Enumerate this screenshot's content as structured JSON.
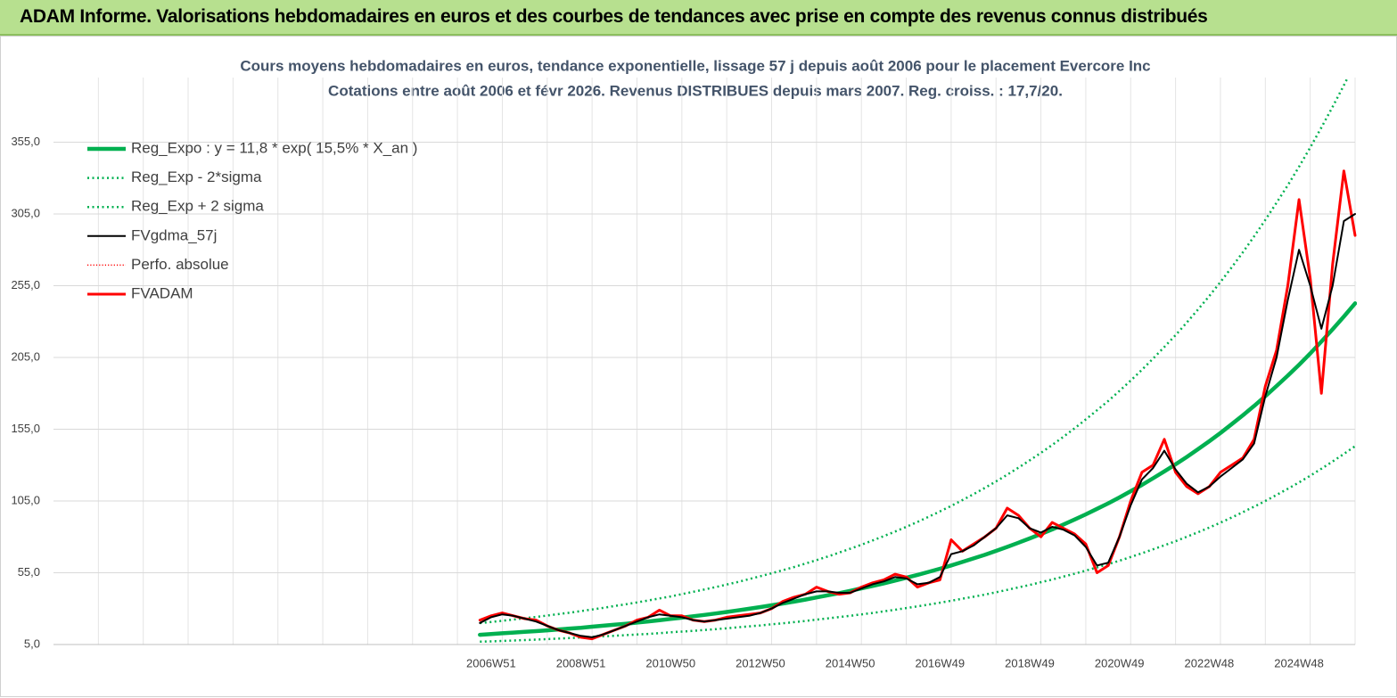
{
  "header": {
    "title": "ADAM Informe. Valorisations hebdomadaires en euros et des courbes de tendances avec prise en compte des revenus connus distribués"
  },
  "chart_data": {
    "type": "line",
    "title": "Cours moyens hebdomadaires en euros, tendance exponentielle, lissage 57 j depuis août 2006 pour le placement Evercore Inc",
    "subtitle": "Cotations entre août 2006 et févr 2026. Revenus DISTRIBUES depuis mars 2007. Reg. croiss. : 17,7/20.",
    "ylim": [
      5,
      400
    ],
    "yticks": [
      {
        "value": 5,
        "label": "5,0"
      },
      {
        "value": 55,
        "label": "55,0"
      },
      {
        "value": 105,
        "label": "105,0"
      },
      {
        "value": 155,
        "label": "155,0"
      },
      {
        "value": 205,
        "label": "205,0"
      },
      {
        "value": 255,
        "label": "255,0"
      },
      {
        "value": 305,
        "label": "305,0"
      },
      {
        "value": 355,
        "label": "355,0"
      }
    ],
    "grid": true,
    "legend": "top-left",
    "categories": [
      null,
      null,
      null,
      null,
      null,
      null,
      null,
      null,
      null,
      null,
      null,
      null,
      null,
      null,
      null,
      null,
      null,
      null,
      null,
      null,
      null,
      null,
      null,
      null,
      null,
      null,
      null,
      null,
      null,
      null,
      null,
      null,
      null,
      null,
      null,
      null,
      null,
      null,
      null,
      "2006W51",
      null,
      null,
      null,
      null,
      null,
      null,
      null,
      "2008W51",
      null,
      null,
      null,
      null,
      null,
      null,
      null,
      "2010W50",
      null,
      null,
      null,
      null,
      null,
      null,
      null,
      "2012W50",
      null,
      null,
      null,
      null,
      null,
      null,
      null,
      "2014W50",
      null,
      null,
      null,
      null,
      null,
      null,
      null,
      "2016W49",
      null,
      null,
      null,
      null,
      null,
      null,
      null,
      "2018W49",
      null,
      null,
      null,
      null,
      null,
      null,
      null,
      "2020W49",
      null,
      null,
      null,
      null,
      null,
      null,
      null,
      "2022W48",
      null,
      null,
      null,
      null,
      null,
      null,
      null,
      "2024W48",
      null,
      null,
      null,
      null,
      null
    ],
    "series": [
      {
        "name": "Reg_Expo : y = 11,8 * exp( 15,5% *  X_an )",
        "color": "#00b050",
        "width": 4.5,
        "style": "solid",
        "values": [
          null,
          null,
          null,
          null,
          null,
          null,
          null,
          null,
          null,
          null,
          null,
          null,
          null,
          null,
          null,
          null,
          null,
          null,
          null,
          null,
          null,
          null,
          null,
          null,
          null,
          null,
          null,
          null,
          null,
          null,
          null,
          null,
          null,
          null,
          null,
          null,
          null,
          null,
          11.8,
          12.3,
          12.8,
          13.3,
          13.8,
          14.3,
          14.9,
          15.5,
          16.1,
          16.7,
          17.4,
          18.1,
          18.8,
          19.5,
          20.3,
          21.1,
          21.9,
          22.8,
          23.7,
          24.7,
          25.6,
          26.6,
          27.7,
          28.8,
          29.9,
          31.1,
          32.3,
          33.6,
          34.9,
          36.3,
          37.8,
          39.3,
          40.8,
          42.4,
          44.1,
          45.8,
          47.6,
          49.5,
          51.5,
          53.5,
          55.6,
          57.8,
          60.1,
          62.5,
          65.0,
          67.5,
          70.2,
          73.0,
          75.9,
          78.9,
          82.0,
          85.2,
          88.6,
          92.1,
          95.7,
          99.5,
          103.4,
          107.5,
          111.8,
          116.2,
          120.8,
          125.6,
          130.5,
          135.7,
          141.1,
          146.6,
          152.4,
          158.5,
          164.7,
          171.2,
          178.0,
          185.1,
          192.3,
          199.9,
          207.8,
          216.1,
          224.6,
          233.5,
          242.7
        ]
      },
      {
        "name": "Reg_Exp - 2*sigma",
        "color": "#00b050",
        "width": 2.5,
        "style": "dotted",
        "values": [
          null,
          null,
          null,
          null,
          null,
          null,
          null,
          null,
          null,
          null,
          null,
          null,
          null,
          null,
          null,
          null,
          null,
          null,
          null,
          null,
          null,
          null,
          null,
          null,
          null,
          null,
          null,
          null,
          null,
          null,
          null,
          null,
          null,
          null,
          null,
          null,
          null,
          null,
          7.0,
          7.2,
          7.5,
          7.8,
          8.1,
          8.4,
          8.8,
          9.1,
          9.5,
          9.9,
          10.3,
          10.7,
          11.1,
          11.5,
          12.0,
          12.4,
          12.9,
          13.5,
          14.0,
          14.5,
          15.1,
          15.7,
          16.3,
          17.0,
          17.7,
          18.3,
          19.1,
          19.8,
          20.6,
          21.4,
          22.3,
          23.2,
          24.1,
          25.0,
          26.0,
          27.0,
          28.1,
          29.2,
          30.4,
          31.6,
          32.8,
          34.1,
          35.5,
          36.9,
          38.3,
          39.8,
          41.4,
          43.1,
          44.8,
          46.5,
          48.4,
          50.3,
          52.3,
          54.3,
          56.5,
          58.7,
          61.0,
          63.4,
          66.0,
          68.6,
          71.3,
          74.1,
          77.0,
          80.1,
          83.2,
          86.5,
          89.9,
          93.5,
          97.2,
          101.0,
          105.0,
          109.2,
          113.5,
          117.9,
          122.6,
          127.5,
          132.5,
          137.8,
          143.2
        ]
      },
      {
        "name": "Reg_Exp + 2 sigma",
        "color": "#00b050",
        "width": 2.5,
        "style": "dotted",
        "values": [
          null,
          null,
          null,
          null,
          null,
          null,
          null,
          null,
          null,
          null,
          null,
          null,
          null,
          null,
          null,
          null,
          null,
          null,
          null,
          null,
          null,
          null,
          null,
          null,
          null,
          null,
          null,
          null,
          null,
          null,
          null,
          null,
          null,
          null,
          null,
          null,
          null,
          null,
          19.9,
          20.7,
          21.5,
          22.4,
          23.3,
          24.2,
          25.2,
          26.2,
          27.2,
          28.3,
          29.4,
          30.5,
          31.8,
          33.0,
          34.3,
          35.7,
          37.1,
          38.5,
          40.1,
          41.7,
          43.3,
          45.0,
          46.8,
          48.6,
          50.6,
          52.6,
          54.6,
          56.8,
          59.0,
          61.4,
          63.8,
          66.3,
          69.0,
          71.7,
          74.5,
          77.5,
          80.5,
          83.7,
          87.0,
          90.4,
          94.0,
          97.7,
          101.6,
          105.6,
          109.8,
          114.1,
          118.6,
          123.3,
          128.2,
          133.3,
          138.5,
          144.0,
          149.7,
          155.6,
          161.8,
          168.2,
          174.7,
          181.7,
          188.9,
          196.4,
          204.2,
          212.3,
          220.5,
          229.3,
          238.4,
          247.8,
          257.6,
          267.8,
          278.3,
          289.3,
          300.8,
          312.8,
          325.0,
          337.8,
          351.3,
          365.2,
          379.6,
          394.6,
          410.2
        ]
      },
      {
        "name": "FVgdma_57j",
        "color": "#000000",
        "width": 2,
        "style": "solid",
        "values": [
          null,
          null,
          null,
          null,
          null,
          null,
          null,
          null,
          null,
          null,
          null,
          null,
          null,
          null,
          null,
          null,
          null,
          null,
          null,
          null,
          null,
          null,
          null,
          null,
          null,
          null,
          null,
          null,
          null,
          null,
          null,
          null,
          null,
          null,
          null,
          null,
          null,
          null,
          20,
          24,
          26,
          25,
          23,
          21,
          18,
          15,
          13,
          11,
          10,
          12,
          15,
          18,
          21,
          24,
          26,
          25,
          24,
          22,
          21,
          22,
          23,
          24,
          25,
          27,
          30,
          34,
          37,
          40,
          42,
          42,
          41,
          41,
          44,
          47,
          49,
          52,
          51,
          47,
          48,
          52,
          68,
          70,
          74,
          80,
          86,
          95,
          93,
          86,
          83,
          87,
          85,
          81,
          73,
          60,
          62,
          80,
          102,
          120,
          128,
          140,
          127,
          117,
          111,
          115,
          122,
          128,
          134,
          145,
          178,
          205,
          245,
          280,
          255,
          225,
          255,
          300,
          305
        ]
      },
      {
        "name": "Perfo. absolue",
        "color": "#ff0000",
        "width": 1.5,
        "style": "dotted",
        "values": [
          null,
          null,
          null,
          null,
          null,
          null,
          null,
          null,
          null,
          null,
          null,
          null,
          null,
          null,
          null,
          null,
          null,
          null,
          null,
          null,
          null,
          null,
          null,
          null,
          null,
          null,
          null,
          null,
          null,
          null,
          null,
          null,
          null,
          null,
          null,
          null,
          null,
          null,
          22,
          25,
          27,
          25,
          23,
          22,
          18,
          15,
          13,
          10,
          9,
          12,
          15,
          18,
          22,
          24,
          29,
          25,
          25,
          22,
          21,
          22,
          24,
          25,
          26,
          27,
          30,
          35,
          38,
          40,
          45,
          42,
          40,
          41,
          45,
          48,
          50,
          54,
          52,
          45,
          48,
          50,
          78,
          70,
          75,
          80,
          86,
          100,
          95,
          86,
          80,
          90,
          86,
          82,
          75,
          55,
          60,
          80,
          105,
          125,
          130,
          148,
          125,
          115,
          110,
          115,
          125,
          130,
          135,
          148,
          185,
          210,
          255,
          315,
          260,
          180,
          270,
          335,
          290
        ]
      },
      {
        "name": "FVADAM",
        "color": "#ff0000",
        "width": 3,
        "style": "solid",
        "values": [
          null,
          null,
          null,
          null,
          null,
          null,
          null,
          null,
          null,
          null,
          null,
          null,
          null,
          null,
          null,
          null,
          null,
          null,
          null,
          null,
          null,
          null,
          null,
          null,
          null,
          null,
          null,
          null,
          null,
          null,
          null,
          null,
          null,
          null,
          null,
          null,
          null,
          null,
          22,
          25,
          27,
          25,
          23,
          22,
          18,
          15,
          13,
          10,
          9,
          12,
          15,
          18,
          22,
          24,
          29,
          25,
          25,
          22,
          21,
          22,
          24,
          25,
          26,
          27,
          30,
          35,
          38,
          40,
          45,
          42,
          40,
          41,
          45,
          48,
          50,
          54,
          52,
          45,
          48,
          50,
          78,
          70,
          75,
          80,
          86,
          100,
          95,
          86,
          80,
          90,
          86,
          82,
          75,
          55,
          60,
          80,
          105,
          125,
          130,
          148,
          125,
          115,
          110,
          115,
          125,
          130,
          135,
          148,
          185,
          210,
          255,
          315,
          260,
          180,
          270,
          335,
          290
        ]
      }
    ]
  }
}
